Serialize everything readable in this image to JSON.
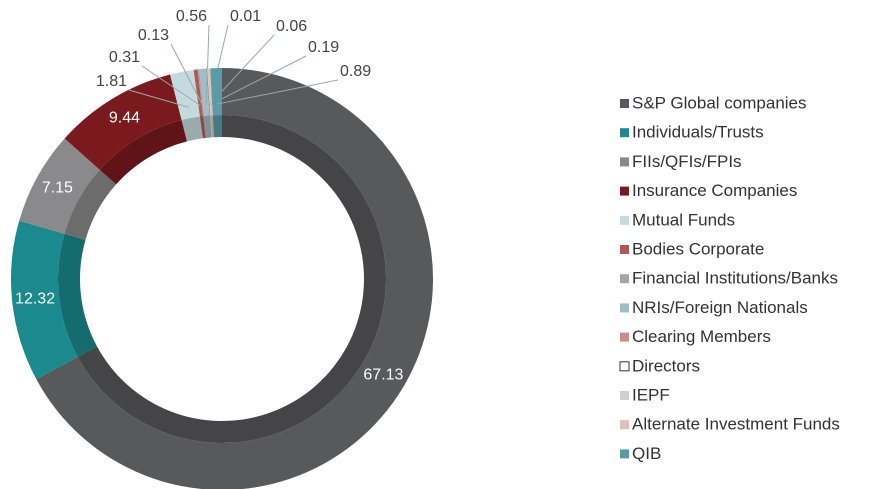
{
  "chart_data": {
    "type": "donut",
    "categories": [
      "S&P Global companies",
      "Individuals/Trusts",
      "FIIs/QFIs/FPIs",
      "Insurance Companies",
      "Mutual Funds",
      "Bodies Corporate",
      "Financial Institutions/Banks",
      "NRIs/Foreign Nationals",
      "Clearing Members",
      "Directors",
      "IEPF",
      "Alternate Investment Funds",
      "QIB"
    ],
    "values": [
      67.13,
      12.32,
      7.15,
      9.44,
      1.81,
      0.31,
      0.13,
      0.56,
      0.01,
      0,
      0.06,
      0.19,
      0.89
    ],
    "colors": [
      "#58595b",
      "#1a8a8e",
      "#8a8a8c",
      "#7b1a1e",
      "#c5dade",
      "#b05a58",
      "#a6a6a6",
      "#9fbec5",
      "#c98f86",
      "#ffffff",
      "#d0d0d0",
      "#e0c0b8",
      "#5a9ca6"
    ],
    "legend": "right"
  }
}
